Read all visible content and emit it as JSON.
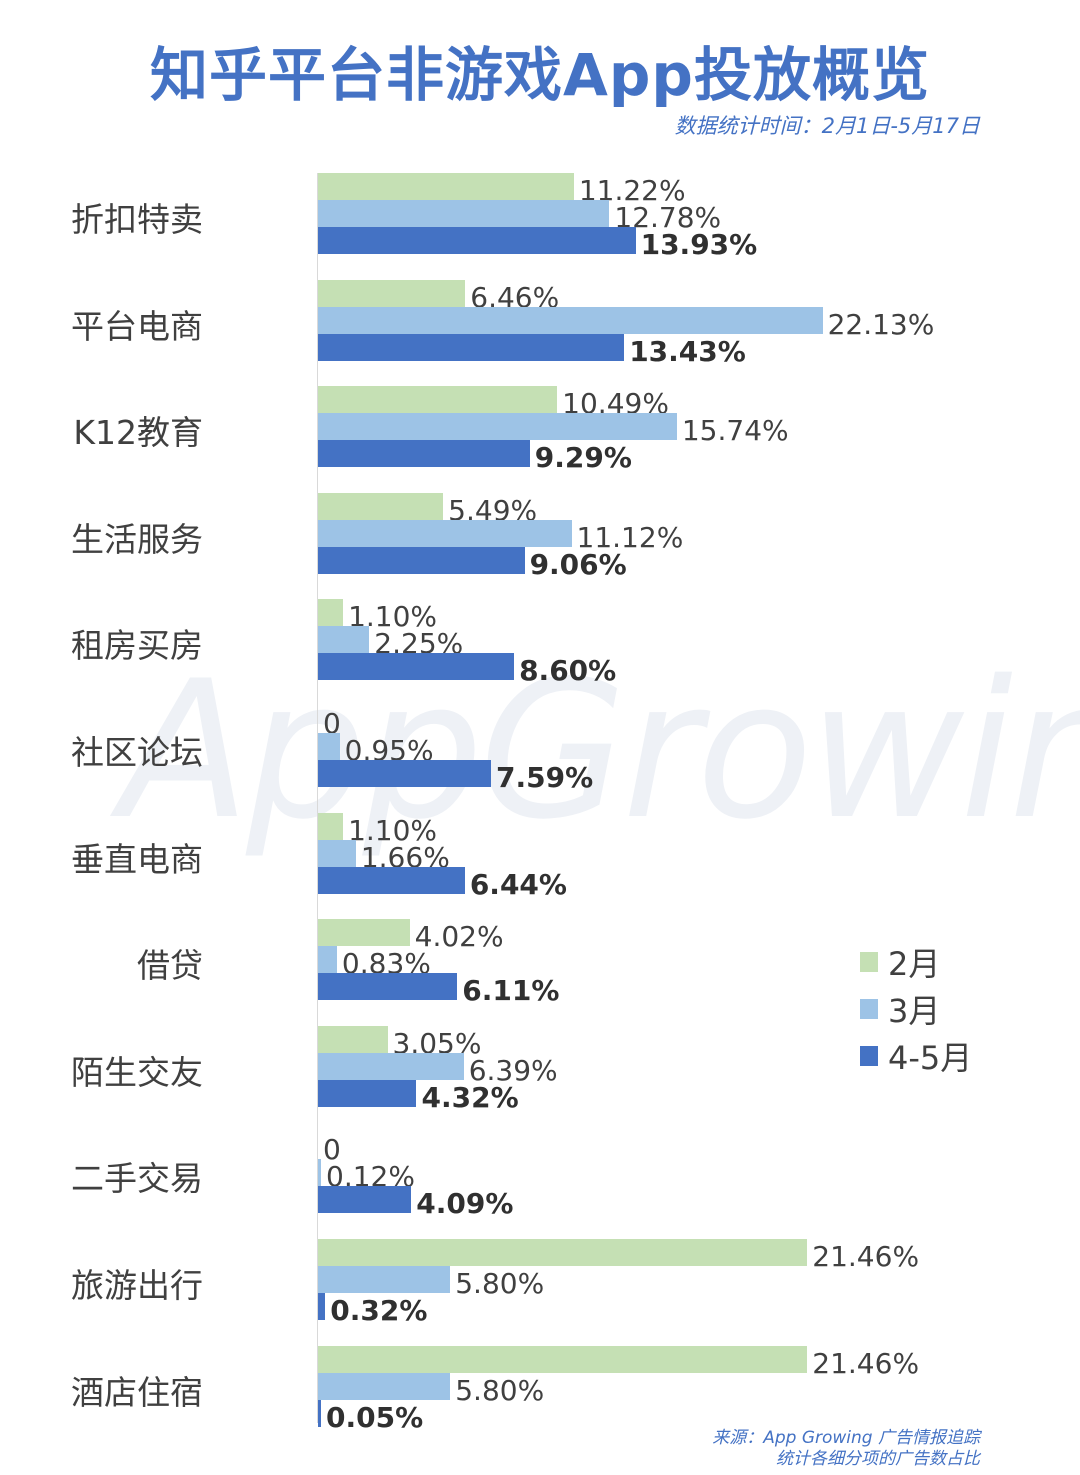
{
  "header": {
    "title": "知乎平台非游戏App投放概览",
    "subtitle": "数据统计时间：2月1日-5月17日"
  },
  "watermark": "AppGrowing",
  "legend": [
    {
      "label": "2月",
      "color": "#C5E0B4"
    },
    {
      "label": "3月",
      "color": "#9DC3E6"
    },
    {
      "label": "4-5月",
      "color": "#4472C4"
    }
  ],
  "footer": {
    "source_line1": "来源：App Growing 广告情报追踪",
    "source_line2": "统计各细分项的广告数占比"
  },
  "chart_data": {
    "type": "bar",
    "orientation": "horizontal",
    "title": "知乎平台非游戏App投放概览",
    "subtitle": "数据统计时间：2月1日-5月17日",
    "xlabel": "",
    "ylabel": "",
    "unit": "%",
    "grid": false,
    "legend_position": "right",
    "categories": [
      "折扣特卖",
      "平台电商",
      "K12教育",
      "生活服务",
      "租房买房",
      "社区论坛",
      "垂直电商",
      "借贷",
      "陌生交友",
      "二手交易",
      "旅游出行",
      "酒店住宿"
    ],
    "series": [
      {
        "name": "2月",
        "color": "#C5E0B4",
        "values": [
          11.22,
          6.46,
          10.49,
          5.49,
          1.1,
          0,
          1.1,
          4.02,
          3.05,
          0,
          21.46,
          21.46
        ],
        "labels": [
          "11.22%",
          "6.46%",
          "10.49%",
          "5.49%",
          "1.10%",
          "0",
          "1.10%",
          "4.02%",
          "3.05%",
          "0",
          "21.46%",
          "21.46%"
        ]
      },
      {
        "name": "3月",
        "color": "#9DC3E6",
        "values": [
          12.78,
          22.13,
          15.74,
          11.12,
          2.25,
          0.95,
          1.66,
          0.83,
          6.39,
          0.12,
          5.8,
          5.8
        ],
        "labels": [
          "12.78%",
          "22.13%",
          "15.74%",
          "11.12%",
          "2.25%",
          "0.95%",
          "1.66%",
          "0.83%",
          "6.39%",
          "0.12%",
          "5.80%",
          "5.80%"
        ]
      },
      {
        "name": "4-5月",
        "color": "#4472C4",
        "values": [
          13.93,
          13.43,
          9.29,
          9.06,
          8.6,
          7.59,
          6.44,
          6.11,
          4.32,
          4.09,
          0.32,
          0.05
        ],
        "labels": [
          "13.93%",
          "13.43%",
          "9.29%",
          "9.06%",
          "8.60%",
          "7.59%",
          "6.44%",
          "6.11%",
          "4.32%",
          "4.09%",
          "0.32%",
          "0.05%"
        ]
      }
    ],
    "source": "来源：App Growing 广告情报追踪 统计各细分项的广告数占比"
  }
}
